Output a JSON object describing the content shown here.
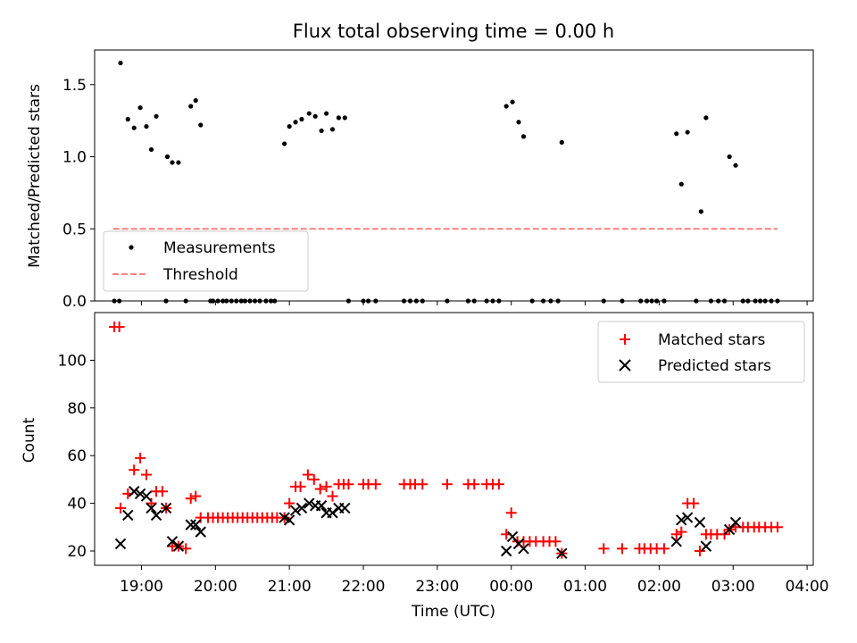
{
  "chart_data": [
    {
      "type": "scatter",
      "title": "Flux total observing time = 0.00 h",
      "xlabel": "",
      "ylabel": "Matched/Predicted stars",
      "xlim": [
        "18:22",
        "04:05"
      ],
      "ylim": [
        0,
        1.74
      ],
      "yticks": [
        0.0,
        0.5,
        1.0,
        1.5
      ],
      "ytick_labels": [
        "0.0",
        "0.5",
        "1.0",
        "1.5"
      ],
      "xticks": [
        "19:00",
        "20:00",
        "21:00",
        "22:00",
        "23:00",
        "00:00",
        "01:00",
        "02:00",
        "03:00",
        "04:00"
      ],
      "legend_position": "lower-left",
      "legend": [
        {
          "label": "Measurements",
          "marker": "dot",
          "color": "#000000"
        },
        {
          "label": "Threshold",
          "marker": "dashed-line",
          "color": "#ff8080"
        }
      ],
      "threshold": {
        "name": "Threshold",
        "value": 0.5,
        "x_start": "18:37",
        "x_end": "03:36",
        "color": "#ff8080"
      },
      "series": [
        {
          "name": "Measurements",
          "color": "#000000",
          "points": [
            [
              "18:38",
              0
            ],
            [
              "18:42",
              0
            ],
            [
              "18:43",
              1.65
            ],
            [
              "18:49",
              1.26
            ],
            [
              "18:54",
              1.2
            ],
            [
              "18:59",
              1.34
            ],
            [
              "19:04",
              1.21
            ],
            [
              "19:08",
              1.05
            ],
            [
              "19:12",
              1.28
            ],
            [
              "19:20",
              0
            ],
            [
              "19:21",
              1.0
            ],
            [
              "19:25",
              0.96
            ],
            [
              "19:30",
              0.96
            ],
            [
              "19:36",
              0
            ],
            [
              "19:40",
              1.35
            ],
            [
              "19:44",
              1.39
            ],
            [
              "19:48",
              1.22
            ],
            [
              "19:56",
              0
            ],
            [
              "19:58",
              0
            ],
            [
              "20:02",
              0
            ],
            [
              "20:06",
              0
            ],
            [
              "20:09",
              0
            ],
            [
              "20:13",
              0
            ],
            [
              "20:17",
              0
            ],
            [
              "20:21",
              0
            ],
            [
              "20:24",
              0
            ],
            [
              "20:28",
              0
            ],
            [
              "20:32",
              0
            ],
            [
              "20:36",
              0
            ],
            [
              "20:41",
              0
            ],
            [
              "20:45",
              0
            ],
            [
              "20:48",
              0
            ],
            [
              "20:56",
              1.09
            ],
            [
              "21:00",
              1.21
            ],
            [
              "21:05",
              1.24
            ],
            [
              "21:10",
              1.26
            ],
            [
              "21:16",
              1.3
            ],
            [
              "21:21",
              1.28
            ],
            [
              "21:26",
              1.18
            ],
            [
              "21:30",
              1.3
            ],
            [
              "21:35",
              1.19
            ],
            [
              "21:40",
              1.27
            ],
            [
              "21:45",
              1.27
            ],
            [
              "21:48",
              0
            ],
            [
              "22:00",
              0
            ],
            [
              "22:04",
              0
            ],
            [
              "22:10",
              0
            ],
            [
              "22:33",
              0
            ],
            [
              "22:38",
              0
            ],
            [
              "22:43",
              0
            ],
            [
              "22:48",
              0
            ],
            [
              "23:08",
              0
            ],
            [
              "23:25",
              0
            ],
            [
              "23:30",
              0
            ],
            [
              "23:40",
              0
            ],
            [
              "23:45",
              0
            ],
            [
              "23:50",
              0
            ],
            [
              "23:56",
              1.35
            ],
            [
              "24:01",
              1.38
            ],
            [
              "24:06",
              1.24
            ],
            [
              "24:10",
              1.14
            ],
            [
              "24:17",
              0
            ],
            [
              "24:26",
              0
            ],
            [
              "24:32",
              0
            ],
            [
              "24:38",
              0
            ],
            [
              "24:41",
              1.1
            ],
            [
              "25:15",
              0
            ],
            [
              "25:30",
              0
            ],
            [
              "25:45",
              0
            ],
            [
              "25:50",
              0
            ],
            [
              "25:54",
              0
            ],
            [
              "25:58",
              0
            ],
            [
              "26:04",
              0
            ],
            [
              "26:14",
              1.16
            ],
            [
              "26:18",
              0.81
            ],
            [
              "26:23",
              1.17
            ],
            [
              "26:30",
              0
            ],
            [
              "26:34",
              0.62
            ],
            [
              "26:38",
              1.27
            ],
            [
              "26:42",
              0
            ],
            [
              "26:48",
              0
            ],
            [
              "26:53",
              0
            ],
            [
              "26:57",
              1.0
            ],
            [
              "27:02",
              0.94
            ],
            [
              "27:08",
              0
            ],
            [
              "27:12",
              0
            ],
            [
              "27:18",
              0
            ],
            [
              "27:22",
              0
            ],
            [
              "27:26",
              0
            ],
            [
              "27:31",
              0
            ],
            [
              "27:36",
              0
            ]
          ]
        }
      ]
    },
    {
      "type": "scatter",
      "title": "",
      "xlabel": "Time (UTC)",
      "ylabel": "Count",
      "xlim": [
        "18:22",
        "04:05"
      ],
      "ylim": [
        14,
        120
      ],
      "yticks": [
        20,
        40,
        60,
        80,
        100
      ],
      "ytick_labels": [
        "20",
        "40",
        "60",
        "80",
        "100"
      ],
      "xticks": [
        "19:00",
        "20:00",
        "21:00",
        "22:00",
        "23:00",
        "00:00",
        "01:00",
        "02:00",
        "03:00",
        "04:00"
      ],
      "xtick_labels": [
        "19:00",
        "20:00",
        "21:00",
        "22:00",
        "23:00",
        "00:00",
        "01:00",
        "02:00",
        "03:00",
        "04:00"
      ],
      "legend_position": "upper-right",
      "legend": [
        {
          "label": "Matched stars",
          "marker": "plus",
          "color": "#ff0000"
        },
        {
          "label": "Predicted stars",
          "marker": "x",
          "color": "#000000"
        }
      ],
      "series": [
        {
          "name": "Matched stars",
          "color": "#ff0000",
          "marker": "plus",
          "points": [
            [
              "18:38",
              114
            ],
            [
              "18:42",
              114
            ],
            [
              "18:43",
              38
            ],
            [
              "18:49",
              44
            ],
            [
              "18:54",
              54
            ],
            [
              "18:59",
              59
            ],
            [
              "19:04",
              52
            ],
            [
              "19:08",
              40
            ],
            [
              "19:12",
              45
            ],
            [
              "19:17",
              45
            ],
            [
              "19:20",
              38
            ],
            [
              "19:25",
              22
            ],
            [
              "19:30",
              22
            ],
            [
              "19:36",
              21
            ],
            [
              "19:40",
              42
            ],
            [
              "19:44",
              43
            ],
            [
              "19:48",
              34
            ],
            [
              "19:54",
              34
            ],
            [
              "19:58",
              34
            ],
            [
              "20:02",
              34
            ],
            [
              "20:06",
              34
            ],
            [
              "20:10",
              34
            ],
            [
              "20:14",
              34
            ],
            [
              "20:18",
              34
            ],
            [
              "20:22",
              34
            ],
            [
              "20:26",
              34
            ],
            [
              "20:30",
              34
            ],
            [
              "20:34",
              34
            ],
            [
              "20:38",
              34
            ],
            [
              "20:42",
              34
            ],
            [
              "20:46",
              34
            ],
            [
              "20:50",
              34
            ],
            [
              "20:56",
              34
            ],
            [
              "21:00",
              40
            ],
            [
              "21:05",
              47
            ],
            [
              "21:09",
              47
            ],
            [
              "21:15",
              52
            ],
            [
              "21:20",
              50
            ],
            [
              "21:25",
              46
            ],
            [
              "21:30",
              47
            ],
            [
              "21:35",
              43
            ],
            [
              "21:40",
              48
            ],
            [
              "21:44",
              48
            ],
            [
              "21:48",
              48
            ],
            [
              "22:00",
              48
            ],
            [
              "22:04",
              48
            ],
            [
              "22:10",
              48
            ],
            [
              "22:33",
              48
            ],
            [
              "22:38",
              48
            ],
            [
              "22:42",
              48
            ],
            [
              "22:48",
              48
            ],
            [
              "23:08",
              48
            ],
            [
              "23:25",
              48
            ],
            [
              "23:30",
              48
            ],
            [
              "23:40",
              48
            ],
            [
              "23:45",
              48
            ],
            [
              "23:50",
              48
            ],
            [
              "23:56",
              27
            ],
            [
              "24:00",
              36
            ],
            [
              "24:05",
              24
            ],
            [
              "24:10",
              24
            ],
            [
              "24:15",
              24
            ],
            [
              "24:20",
              24
            ],
            [
              "24:26",
              24
            ],
            [
              "24:31",
              24
            ],
            [
              "24:36",
              24
            ],
            [
              "24:41",
              19
            ],
            [
              "25:15",
              21
            ],
            [
              "25:30",
              21
            ],
            [
              "25:44",
              21
            ],
            [
              "25:48",
              21
            ],
            [
              "25:53",
              21
            ],
            [
              "25:58",
              21
            ],
            [
              "26:04",
              21
            ],
            [
              "26:14",
              27
            ],
            [
              "26:18",
              28
            ],
            [
              "26:23",
              40
            ],
            [
              "26:28",
              40
            ],
            [
              "26:33",
              20
            ],
            [
              "26:38",
              27
            ],
            [
              "26:42",
              27
            ],
            [
              "26:47",
              27
            ],
            [
              "26:53",
              27
            ],
            [
              "26:57",
              29
            ],
            [
              "27:02",
              30
            ],
            [
              "27:08",
              30
            ],
            [
              "27:12",
              30
            ],
            [
              "27:17",
              30
            ],
            [
              "27:21",
              30
            ],
            [
              "27:26",
              30
            ],
            [
              "27:31",
              30
            ],
            [
              "27:36",
              30
            ]
          ]
        },
        {
          "name": "Predicted stars",
          "color": "#000000",
          "marker": "x",
          "points": [
            [
              "18:43",
              23
            ],
            [
              "18:49",
              35
            ],
            [
              "18:54",
              45
            ],
            [
              "18:59",
              44
            ],
            [
              "19:04",
              43
            ],
            [
              "19:08",
              38
            ],
            [
              "19:12",
              35
            ],
            [
              "19:20",
              38
            ],
            [
              "19:25",
              24
            ],
            [
              "19:30",
              22
            ],
            [
              "19:40",
              31
            ],
            [
              "19:44",
              31
            ],
            [
              "19:48",
              28
            ],
            [
              "20:56",
              34
            ],
            [
              "21:00",
              33
            ],
            [
              "21:05",
              37
            ],
            [
              "21:10",
              38
            ],
            [
              "21:16",
              40
            ],
            [
              "21:21",
              39
            ],
            [
              "21:26",
              39
            ],
            [
              "21:30",
              36
            ],
            [
              "21:35",
              36
            ],
            [
              "21:40",
              38
            ],
            [
              "21:45",
              38
            ],
            [
              "23:56",
              20
            ],
            [
              "24:01",
              26
            ],
            [
              "24:06",
              23
            ],
            [
              "24:10",
              21
            ],
            [
              "24:41",
              19
            ],
            [
              "26:14",
              24
            ],
            [
              "26:18",
              33
            ],
            [
              "26:23",
              34
            ],
            [
              "26:33",
              32
            ],
            [
              "26:38",
              22
            ],
            [
              "26:57",
              29
            ],
            [
              "27:02",
              32
            ]
          ]
        }
      ]
    }
  ]
}
